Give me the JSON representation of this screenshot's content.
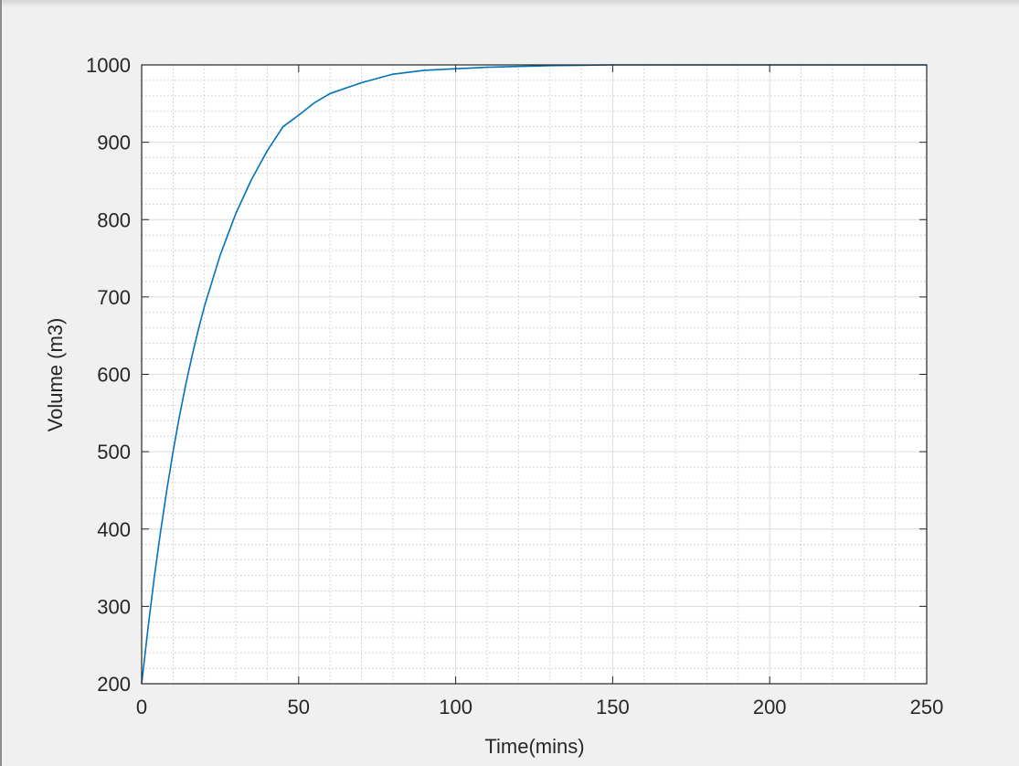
{
  "figure": {
    "background": "#f0f0f0",
    "axes_background": "#ffffff",
    "axis_color": "#262626",
    "line_color": "#0072bd"
  },
  "chart_data": {
    "type": "line",
    "title": "",
    "xlabel": "Time(mins)",
    "ylabel": "Volume (m3)",
    "xlim": [
      0,
      250
    ],
    "ylim": [
      200,
      1000
    ],
    "xticks": [
      0,
      50,
      100,
      150,
      200,
      250
    ],
    "yticks": [
      200,
      300,
      400,
      500,
      600,
      700,
      800,
      900,
      1000
    ],
    "x_minor_step": 10,
    "y_minor_step": 20,
    "grid": "major and minor",
    "legend": "none",
    "series": [
      {
        "color": "#0072bd",
        "x": [
          0,
          2,
          4,
          6,
          8,
          10,
          12,
          14,
          16,
          18,
          20,
          25,
          30,
          35,
          40,
          45,
          50,
          55,
          60,
          70,
          80,
          90,
          100,
          110,
          120,
          130,
          140,
          150,
          175,
          200,
          225,
          250
        ],
        "y": [
          200,
          271,
          337,
          396,
          450,
          500,
          545,
          586,
          623,
          657,
          688,
          754,
          808,
          852,
          889,
          920,
          935,
          951,
          963,
          977,
          988,
          993,
          995,
          997,
          998,
          999,
          999.5,
          1000,
          1000,
          1000,
          1000,
          1000
        ]
      }
    ]
  }
}
